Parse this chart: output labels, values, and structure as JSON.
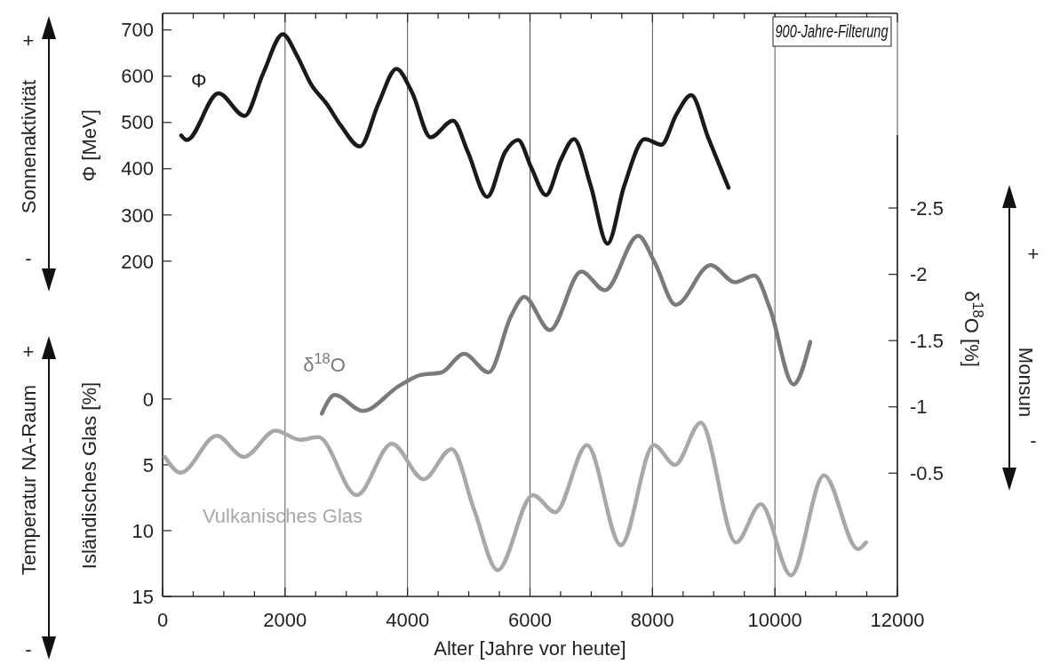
{
  "chart_data": {
    "type": "line",
    "xlabel": "Alter [Jahre vor heute]",
    "ylabel": "Φ [MeV]",
    "y2label": "δ$^{18}$O [%]",
    "y3label": "Isländisches Glas [%]",
    "xlim": [
      0,
      12000
    ],
    "xticks": [
      0,
      {
        "value": 500,
        "label": null
      },
      {
        "value": 1000,
        "label": null
      },
      {
        "value": 1500,
        "label": null
      },
      2000,
      {
        "value": 2500,
        "label": null
      },
      {
        "value": 3000,
        "label": null
      },
      {
        "value": 3500,
        "label": null
      },
      4000,
      {
        "value": 4500,
        "label": null
      },
      {
        "value": 5000,
        "label": null
      },
      {
        "value": 5500,
        "label": null
      },
      6000,
      {
        "value": 6500,
        "label": null
      },
      {
        "value": 7000,
        "label": null
      },
      {
        "value": 7500,
        "label": null
      },
      8000,
      {
        "value": 8500,
        "label": null
      },
      {
        "value": 9000,
        "label": null
      },
      {
        "value": 9500,
        "label": null
      },
      10000,
      {
        "value": 10500,
        "label": null
      },
      {
        "value": 11000,
        "label": null
      },
      {
        "value": 11500,
        "label": null
      },
      12000
    ],
    "ylim": [
      -525,
      736
    ],
    "yticks": [
      200,
      300,
      400,
      500,
      600,
      700
    ],
    "y2lim": [
      0.43,
      -3.05
    ],
    "y2ticks": [
      -0.5,
      -1,
      -1.5,
      -2,
      -2.5
    ],
    "y3lim": [
      15,
      -29.3
    ],
    "y3ticks": [
      0,
      5,
      10,
      15
    ],
    "grid": "x",
    "annotations": [
      "900-Jahre-Filterung",
      "Sonnenaktivität",
      "+",
      "-",
      "Temperatur NA-Raum",
      "+",
      "-",
      "Monsun",
      "+",
      "-"
    ],
    "series": [
      {
        "name": "Φ",
        "color": "#1a1a1a",
        "x": [
          304,
          395,
          912,
          1338,
          1642,
          1964,
          2189,
          2432,
          2675,
          2918,
          3222,
          3526,
          3818,
          4074,
          4378,
          4742,
          4986,
          5302,
          5594,
          5806,
          6019,
          6262,
          6506,
          6718,
          6992,
          7266,
          7539,
          7874,
          8147,
          8390,
          8634,
          8907,
          9242
        ],
        "values": [
          472,
          462,
          563,
          514,
          606,
          691,
          646,
          581,
          541,
          492,
          448,
          541,
          616,
          565,
          468,
          504,
          436,
          339,
          436,
          462,
          403,
          343,
          420,
          464,
          363,
          238,
          363,
          464,
          452,
          517,
          559,
          468,
          359
        ]
      },
      {
        "name": "δ$^{18}$O",
        "color": "#7a7a7a",
        "axis": "y2",
        "x": [
          2600,
          2811,
          3268,
          3868,
          4210,
          4553,
          4924,
          5324,
          5695,
          5906,
          6323,
          6837,
          7225,
          7768,
          8036,
          8379,
          8950,
          9349,
          9663,
          9920,
          10303,
          10577
        ],
        "values": [
          -0.95,
          -1.09,
          -0.97,
          -1.16,
          -1.24,
          -1.26,
          -1.4,
          -1.26,
          -1.69,
          -1.83,
          -1.58,
          -2.02,
          -1.88,
          -2.29,
          -2.09,
          -1.77,
          -2.07,
          -1.94,
          -1.99,
          -1.74,
          -1.17,
          -1.49
        ]
      },
      {
        "name": "Vulkanisches Glas",
        "color": "#a8a8aa",
        "axis": "y3",
        "x": [
          37,
          295,
          885,
          1327,
          1843,
          2249,
          2544,
          3170,
          3745,
          4262,
          4719,
          5087,
          5471,
          6046,
          6414,
          6931,
          7484,
          8022,
          8368,
          8789,
          9364,
          9769,
          10263,
          10801,
          11354,
          11487
        ],
        "values": [
          4.4,
          5.6,
          2.8,
          4.4,
          2.4,
          3.1,
          2.9,
          7.3,
          3.4,
          6.1,
          3.8,
          8.4,
          13,
          7.3,
          8.6,
          3.5,
          11.1,
          3.5,
          5,
          1.8,
          10.9,
          8,
          13.4,
          5.8,
          11.4,
          10.9
        ]
      }
    ]
  }
}
